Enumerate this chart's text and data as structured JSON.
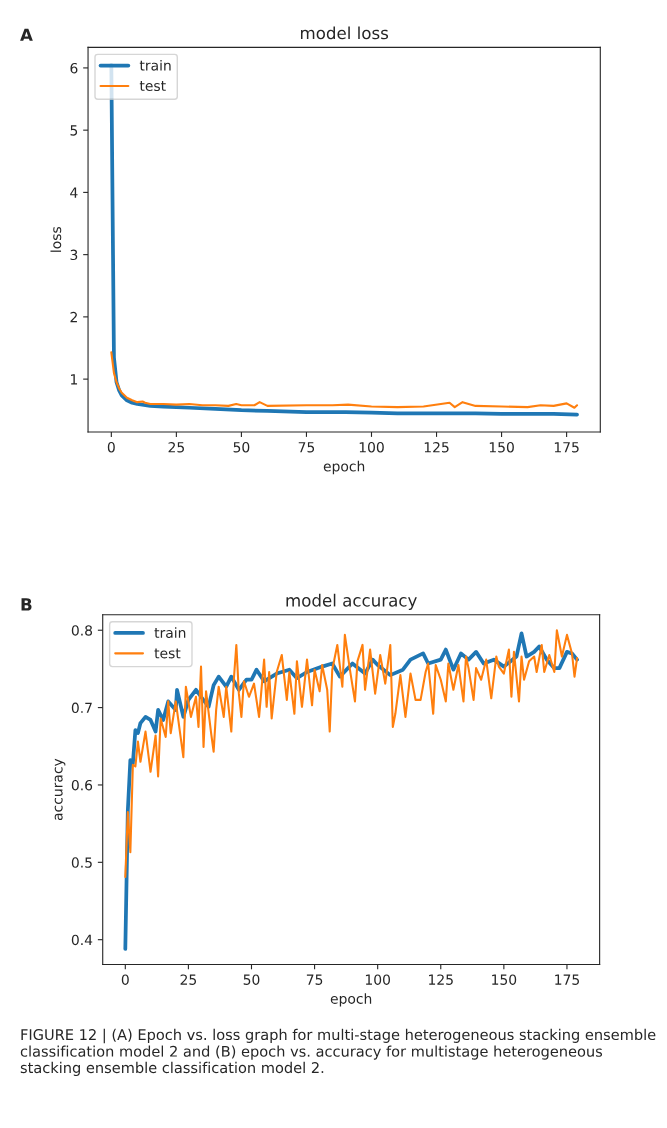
{
  "chart_data": [
    {
      "type": "line",
      "title": "model loss",
      "xlabel": "epoch",
      "ylabel": "loss",
      "xlim": [
        -8.95,
        187.95
      ],
      "xticks": [
        0,
        25,
        50,
        75,
        100,
        125,
        150,
        175
      ],
      "ylim": [
        0.15,
        6.33
      ],
      "yticks": [
        1,
        2,
        3,
        4,
        5,
        6
      ],
      "legend": "top left",
      "grid": false,
      "annotations": [
        "A"
      ],
      "series": [
        {
          "name": "train",
          "color": "#1f77b4",
          "x": [
            0,
            1,
            2,
            3,
            4,
            6,
            8,
            10,
            15,
            20,
            25,
            30,
            40,
            50,
            60,
            75,
            90,
            100,
            110,
            125,
            140,
            150,
            160,
            170,
            179
          ],
          "values": [
            6.05,
            1.35,
            0.95,
            0.82,
            0.74,
            0.66,
            0.62,
            0.6,
            0.57,
            0.56,
            0.55,
            0.54,
            0.52,
            0.5,
            0.49,
            0.47,
            0.47,
            0.46,
            0.45,
            0.45,
            0.45,
            0.44,
            0.44,
            0.44,
            0.43
          ]
        },
        {
          "name": "test",
          "color": "#ff7f0e",
          "x": [
            0,
            1,
            2,
            3,
            4,
            6,
            8,
            10,
            12,
            13,
            15,
            20,
            25,
            30,
            35,
            40,
            45,
            48,
            50,
            55,
            57,
            60,
            75,
            85,
            91,
            100,
            110,
            120,
            130,
            132,
            135,
            140,
            150,
            160,
            165,
            170,
            175,
            178,
            179
          ],
          "values": [
            1.43,
            1.1,
            0.95,
            0.85,
            0.78,
            0.7,
            0.66,
            0.63,
            0.64,
            0.62,
            0.6,
            0.6,
            0.59,
            0.6,
            0.58,
            0.58,
            0.57,
            0.6,
            0.58,
            0.58,
            0.63,
            0.57,
            0.58,
            0.58,
            0.59,
            0.56,
            0.55,
            0.56,
            0.62,
            0.55,
            0.63,
            0.57,
            0.56,
            0.55,
            0.58,
            0.57,
            0.61,
            0.54,
            0.58
          ]
        }
      ]
    },
    {
      "type": "line",
      "title": "model accuracy",
      "xlabel": "epoch",
      "ylabel": "accuracy",
      "xlim": [
        -8.95,
        187.95
      ],
      "xticks": [
        0,
        25,
        50,
        75,
        100,
        125,
        150,
        175
      ],
      "ylim": [
        0.368,
        0.82
      ],
      "yticks": [
        0.4,
        0.5,
        0.6,
        0.7,
        0.8
      ],
      "legend": "top left",
      "grid": false,
      "annotations": [
        "B",
        "FIGURE 12 | (A) Epoch vs. loss graph for multi-stage heterogeneous stacking ensemble classification model 2 and (B) epoch vs. accuracy for multistage heterogeneous stacking ensemble classification model 2."
      ],
      "series": [
        {
          "name": "train",
          "color": "#1f77b4",
          "x": [
            0,
            1,
            2,
            3,
            4,
            5,
            6,
            8,
            10,
            12,
            13,
            15,
            17,
            20,
            20.5,
            23,
            25,
            28,
            30,
            33,
            35,
            37,
            40,
            42,
            45,
            48,
            50,
            52,
            55,
            60,
            65,
            68,
            72,
            78,
            82,
            85,
            90,
            95,
            98,
            100,
            105,
            110,
            113,
            118,
            120,
            125,
            127,
            130,
            133,
            136,
            139,
            142,
            146,
            150,
            155,
            157,
            159,
            162,
            164,
            167,
            170,
            172,
            175,
            177,
            179
          ],
          "values": [
            0.388,
            0.567,
            0.632,
            0.628,
            0.671,
            0.667,
            0.68,
            0.688,
            0.684,
            0.669,
            0.697,
            0.684,
            0.708,
            0.697,
            0.723,
            0.688,
            0.71,
            0.723,
            0.714,
            0.701,
            0.729,
            0.74,
            0.727,
            0.74,
            0.723,
            0.736,
            0.736,
            0.749,
            0.734,
            0.744,
            0.749,
            0.738,
            0.746,
            0.753,
            0.757,
            0.74,
            0.757,
            0.744,
            0.762,
            0.755,
            0.742,
            0.749,
            0.762,
            0.77,
            0.757,
            0.762,
            0.775,
            0.749,
            0.77,
            0.762,
            0.772,
            0.757,
            0.762,
            0.753,
            0.766,
            0.796,
            0.766,
            0.772,
            0.779,
            0.762,
            0.751,
            0.751,
            0.772,
            0.77,
            0.762
          ]
        },
        {
          "name": "test",
          "color": "#ff7f0e",
          "x": [
            0,
            1,
            2,
            3,
            4,
            5,
            6,
            8,
            10,
            12,
            13,
            14,
            16,
            17,
            18,
            20,
            23,
            24,
            26,
            28,
            29,
            30,
            31,
            32,
            34,
            35,
            36,
            37,
            39,
            40,
            42,
            43,
            44,
            45,
            46,
            47,
            49,
            51,
            53,
            55,
            56,
            57,
            58,
            60,
            62,
            64,
            65,
            67,
            68,
            70,
            72,
            74,
            75,
            77,
            78,
            80,
            81,
            82,
            84,
            86,
            87,
            89,
            91,
            92,
            94,
            95,
            97,
            99,
            101,
            103,
            105,
            106,
            107,
            109,
            111,
            113,
            115,
            117,
            119,
            120,
            122,
            123,
            125,
            127,
            128,
            130,
            132,
            134,
            135,
            136,
            138,
            139,
            141,
            143,
            145,
            147,
            148,
            150,
            152,
            153,
            154,
            156,
            157,
            158,
            160,
            162,
            163,
            165,
            166,
            168,
            170,
            171,
            173,
            175,
            177,
            178,
            179
          ],
          "values": [
            0.481,
            0.565,
            0.513,
            0.626,
            0.624,
            0.656,
            0.63,
            0.669,
            0.617,
            0.664,
            0.611,
            0.686,
            0.662,
            0.708,
            0.667,
            0.708,
            0.636,
            0.727,
            0.688,
            0.714,
            0.675,
            0.753,
            0.649,
            0.721,
            0.667,
            0.643,
            0.697,
            0.727,
            0.688,
            0.727,
            0.669,
            0.736,
            0.781,
            0.718,
            0.688,
            0.734,
            0.714,
            0.731,
            0.688,
            0.762,
            0.701,
            0.746,
            0.686,
            0.746,
            0.768,
            0.71,
            0.746,
            0.692,
            0.76,
            0.701,
            0.762,
            0.703,
            0.749,
            0.721,
            0.755,
            0.723,
            0.669,
            0.749,
            0.781,
            0.727,
            0.794,
            0.749,
            0.708,
            0.76,
            0.781,
            0.723,
            0.775,
            0.718,
            0.768,
            0.731,
            0.781,
            0.675,
            0.692,
            0.742,
            0.688,
            0.744,
            0.71,
            0.71,
            0.746,
            0.757,
            0.692,
            0.755,
            0.736,
            0.708,
            0.757,
            0.723,
            0.755,
            0.708,
            0.766,
            0.751,
            0.71,
            0.751,
            0.736,
            0.762,
            0.712,
            0.766,
            0.753,
            0.744,
            0.775,
            0.714,
            0.772,
            0.708,
            0.766,
            0.736,
            0.76,
            0.766,
            0.746,
            0.781,
            0.746,
            0.768,
            0.746,
            0.8,
            0.766,
            0.794,
            0.77,
            0.74,
            0.764
          ]
        }
      ]
    }
  ]
}
